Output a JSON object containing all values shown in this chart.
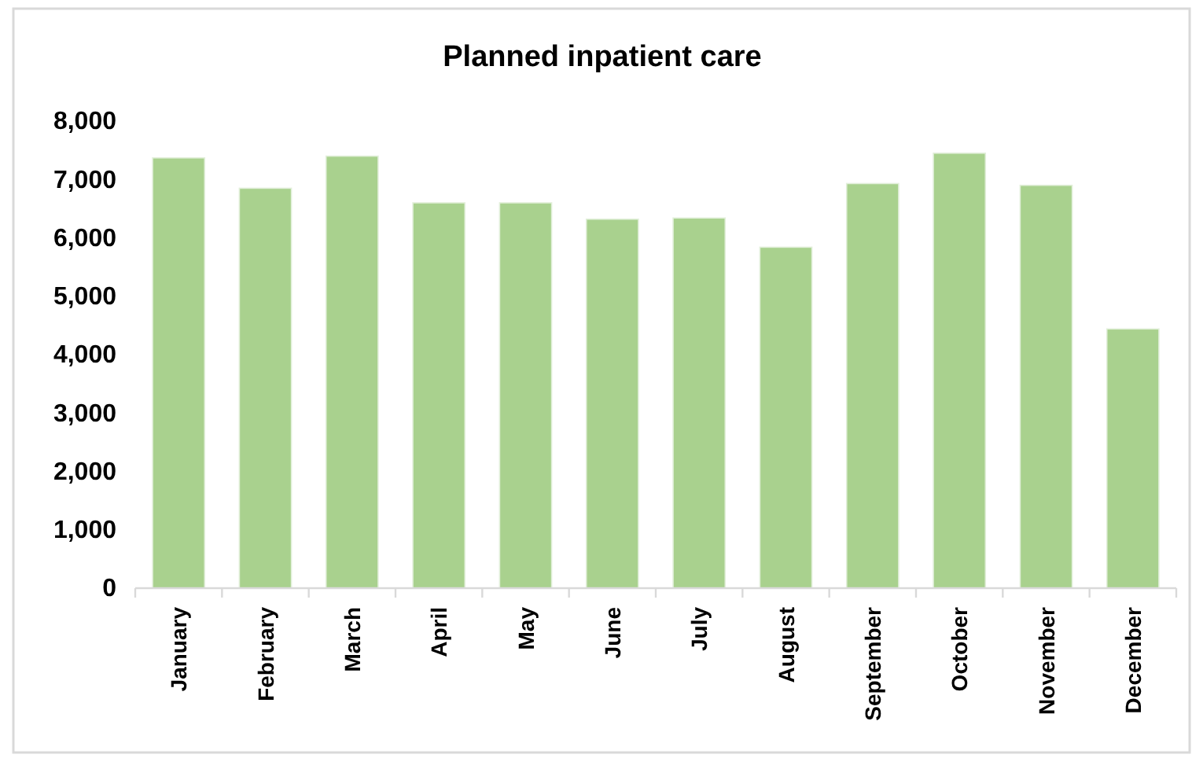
{
  "chart_data": {
    "type": "bar",
    "title": "Planned inpatient care",
    "categories": [
      "January",
      "February",
      "March",
      "April",
      "May",
      "June",
      "July",
      "August",
      "September",
      "October",
      "November",
      "December"
    ],
    "values": [
      7370,
      6850,
      7400,
      6600,
      6600,
      6320,
      6340,
      5840,
      6930,
      7450,
      6900,
      4440
    ],
    "color": "#a9d18e",
    "ylim": [
      0,
      8000
    ],
    "yticks": [
      {
        "value": 0,
        "label": "0"
      },
      {
        "value": 1000,
        "label": "1,000"
      },
      {
        "value": 2000,
        "label": "2,000"
      },
      {
        "value": 3000,
        "label": "3,000"
      },
      {
        "value": 4000,
        "label": "4,000"
      },
      {
        "value": 5000,
        "label": "5,000"
      },
      {
        "value": 6000,
        "label": "6,000"
      },
      {
        "value": 7000,
        "label": "7,000"
      },
      {
        "value": 8000,
        "label": "8,000"
      }
    ],
    "grid": false
  }
}
